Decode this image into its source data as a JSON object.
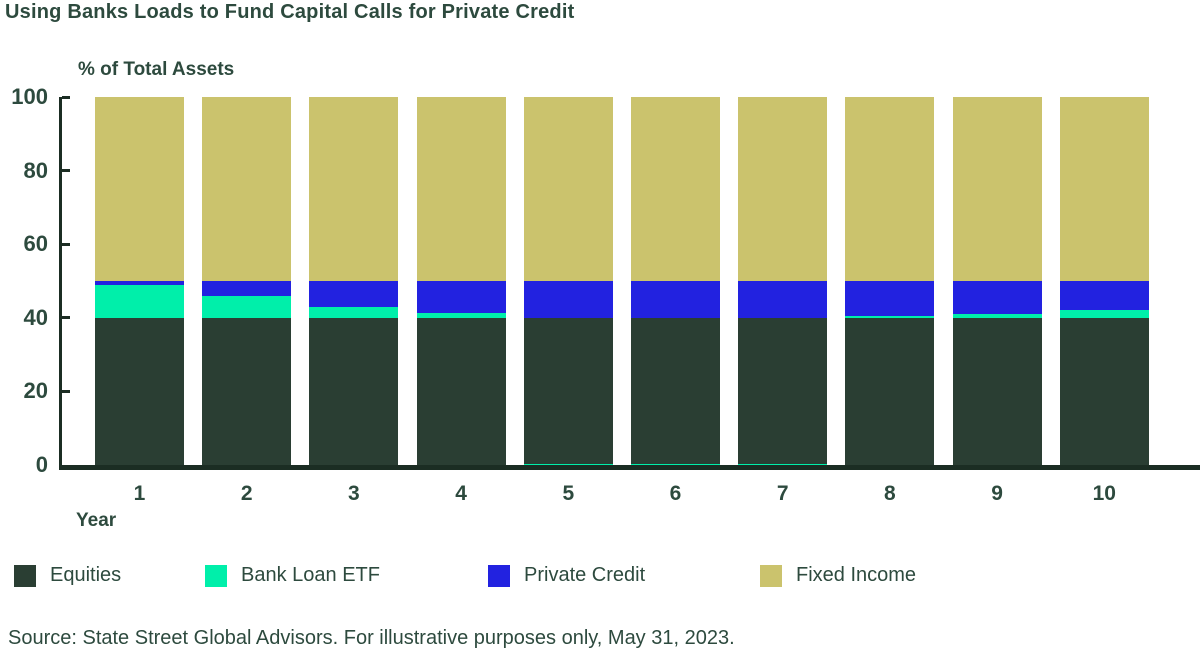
{
  "title": "Using Banks Loads to Fund Capital Calls for Private Credit",
  "y_axis_title": "% of Total Assets",
  "x_axis_title": "Year",
  "source": "Source: State Street Global Advisors. For illustrative purposes only, May 31, 2023.",
  "colors": {
    "background": "#ffffff",
    "text": "#2d4a3e",
    "axis": "#1b2d23",
    "equities": "#2a3e33",
    "bank_loan_etf": "#00efaa",
    "private_credit": "#2222e0",
    "fixed_income": "#cbc36d"
  },
  "chart_data": {
    "type": "bar",
    "stacked": true,
    "title": "Using Banks Loads to Fund Capital Calls for Private Credit",
    "xlabel": "Year",
    "ylabel": "% of Total Assets",
    "ylim": [
      0,
      100
    ],
    "yticks": [
      0,
      20,
      40,
      60,
      80,
      100
    ],
    "grid": false,
    "legend_position": "bottom",
    "categories": [
      "1",
      "2",
      "3",
      "4",
      "5",
      "6",
      "7",
      "8",
      "9",
      "10"
    ],
    "series": [
      {
        "name": "Equities",
        "color": "#2a3e33",
        "values": [
          40,
          40,
          40,
          40,
          40,
          40,
          40,
          40,
          40,
          40
        ]
      },
      {
        "name": "Bank Loan ETF",
        "color": "#00efaa",
        "values": [
          9,
          6,
          3,
          1.25,
          0.4,
          0.4,
          0.4,
          0.5,
          1,
          2
        ]
      },
      {
        "name": "Private Credit",
        "color": "#2222e0",
        "values": [
          1,
          4,
          7,
          8.75,
          10,
          10,
          10,
          9.5,
          9,
          8
        ]
      },
      {
        "name": "Fixed Income",
        "color": "#cbc36d",
        "values": [
          50,
          50,
          50,
          50,
          50,
          50,
          50,
          50,
          50,
          50
        ]
      }
    ],
    "bank_loan_at_bottom_years": [
      5,
      6,
      7
    ],
    "notes": "In years 5-7 the residual Bank Loan ETF sliver is drawn as a thin strip at the very bottom of the bar."
  },
  "legend": {
    "items": [
      "Equities",
      "Bank Loan ETF",
      "Private Credit",
      "Fixed Income"
    ]
  }
}
